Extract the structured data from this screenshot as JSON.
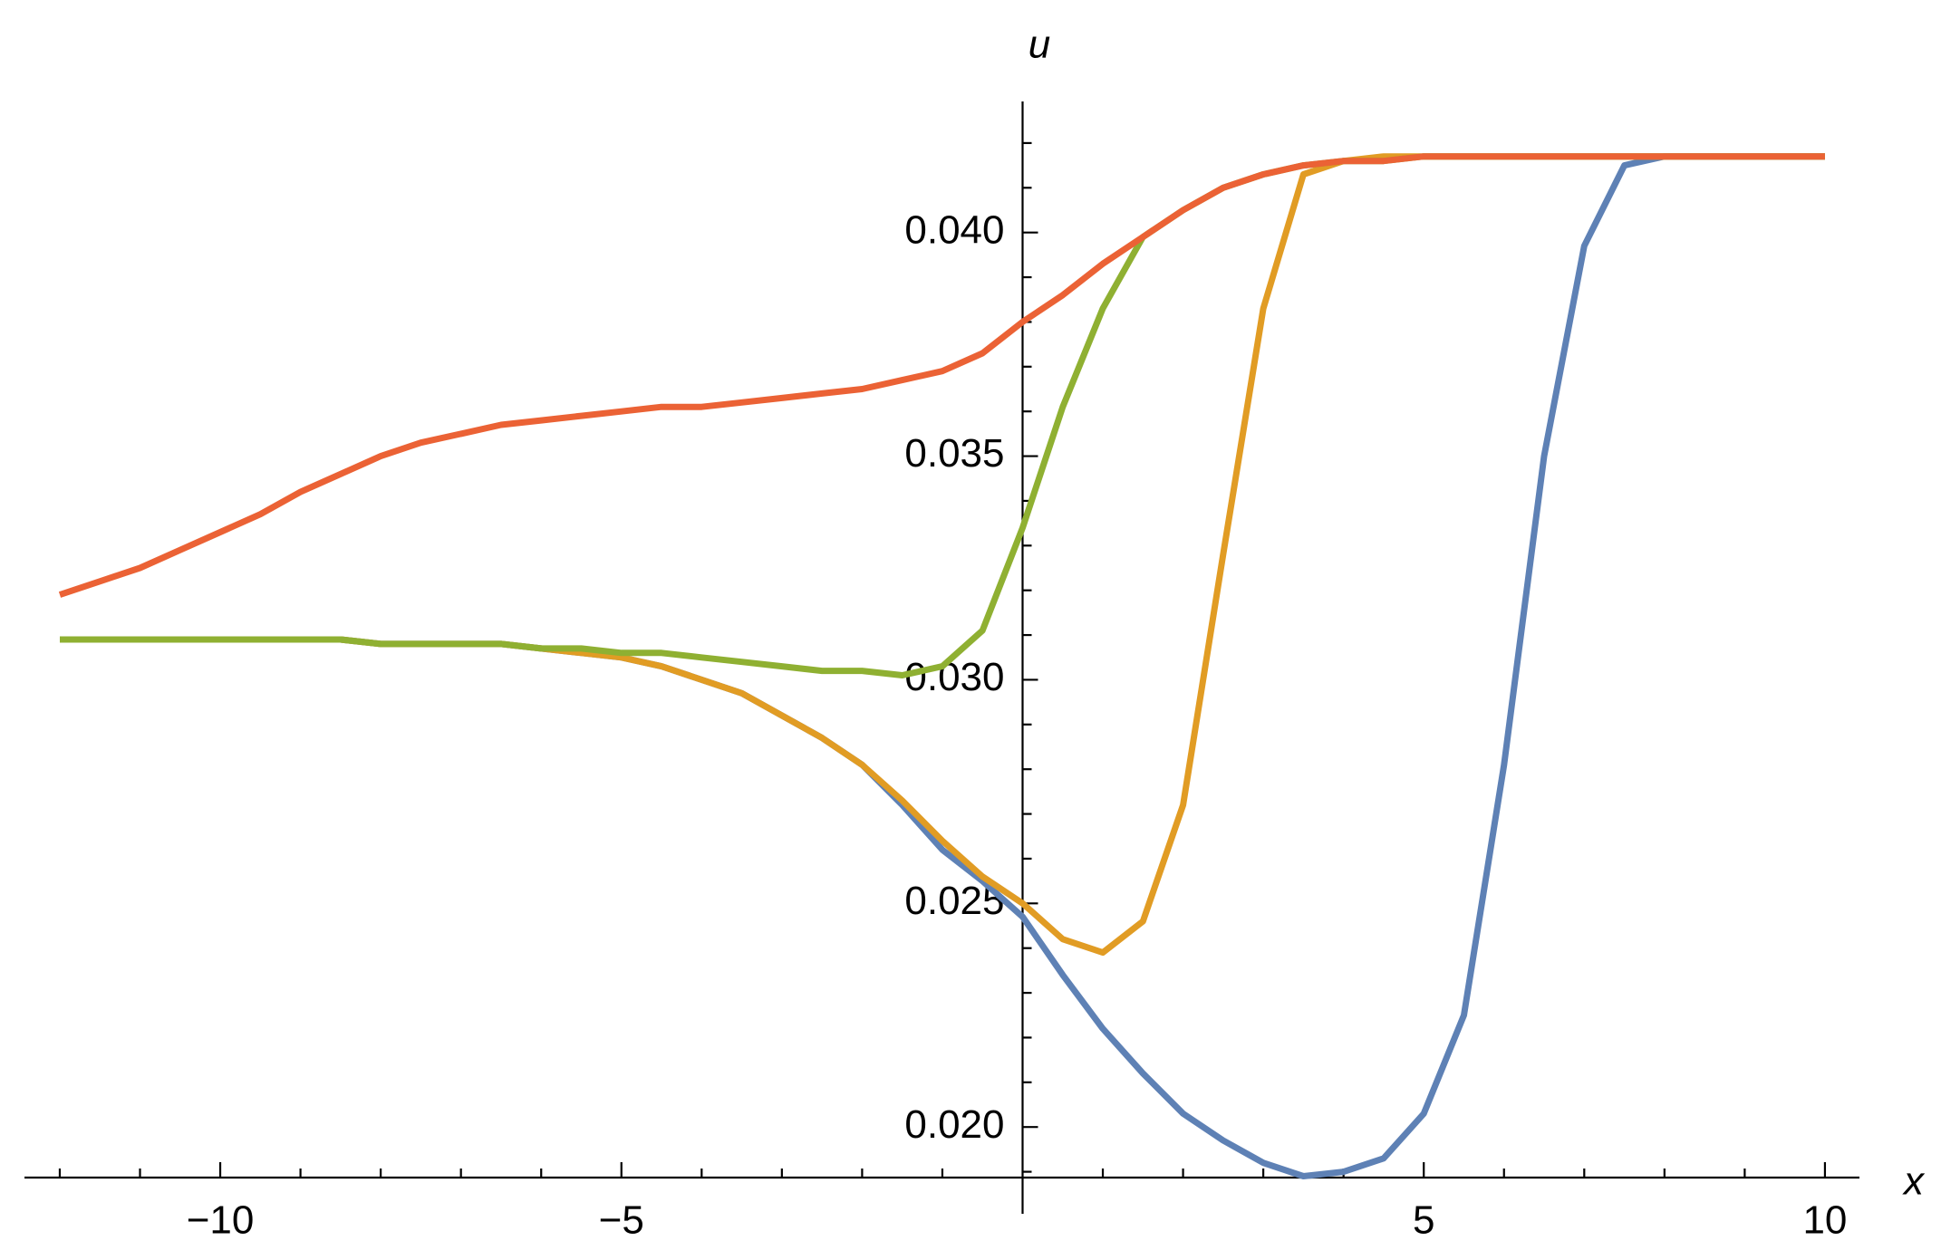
{
  "chart_data": {
    "type": "line",
    "xlabel": "x",
    "ylabel": "u",
    "x": [
      -12,
      -11.5,
      -11,
      -10.5,
      -10,
      -9.5,
      -9,
      -8.5,
      -8,
      -7.5,
      -7,
      -6.5,
      -6,
      -5.5,
      -5,
      -4.5,
      -4,
      -3.5,
      -3,
      -2.5,
      -2,
      -1.5,
      -1,
      -0.5,
      0,
      0.5,
      1,
      1.5,
      2,
      2.5,
      3,
      3.5,
      4,
      4.5,
      5,
      5.5,
      6,
      6.5,
      7,
      7.5,
      8,
      8.5,
      9,
      9.5,
      10
    ],
    "series": [
      {
        "color": "#5e81b5",
        "values": [
          0.0309,
          0.0309,
          0.0309,
          0.0309,
          0.0309,
          0.0309,
          0.0309,
          0.0309,
          0.0308,
          0.0308,
          0.0308,
          0.0308,
          0.0307,
          0.0306,
          0.0305,
          0.0303,
          0.03,
          0.0297,
          0.0292,
          0.0287,
          0.0281,
          0.0272,
          0.0262,
          0.0255,
          0.0247,
          0.0234,
          0.0222,
          0.0212,
          0.0203,
          0.0197,
          0.0192,
          0.0189,
          0.019,
          0.0193,
          0.0203,
          0.0225,
          0.0281,
          0.035,
          0.0397,
          0.0415,
          0.0417,
          0.0417,
          0.0417,
          0.0417,
          0.0417
        ]
      },
      {
        "color": "#e19c24",
        "values": [
          0.0309,
          0.0309,
          0.0309,
          0.0309,
          0.0309,
          0.0309,
          0.0309,
          0.0309,
          0.0308,
          0.0308,
          0.0308,
          0.0308,
          0.0307,
          0.0306,
          0.0305,
          0.0303,
          0.03,
          0.0297,
          0.0292,
          0.0287,
          0.0281,
          0.0273,
          0.0264,
          0.0256,
          0.025,
          0.0242,
          0.0239,
          0.0246,
          0.0272,
          0.0328,
          0.0383,
          0.0413,
          0.0416,
          0.0417,
          0.0417,
          0.0417,
          0.0417,
          0.0417,
          0.0417,
          0.0417,
          0.0417,
          0.0417,
          0.0417,
          0.0417,
          0.0417
        ]
      },
      {
        "color": "#8fb032",
        "values": [
          0.0309,
          0.0309,
          0.0309,
          0.0309,
          0.0309,
          0.0309,
          0.0309,
          0.0309,
          0.0308,
          0.0308,
          0.0308,
          0.0308,
          0.0307,
          0.0307,
          0.0306,
          0.0306,
          0.0305,
          0.0304,
          0.0303,
          0.0302,
          0.0302,
          0.0301,
          0.0303,
          0.0311,
          0.0334,
          0.0361,
          0.0383,
          0.0399,
          0.0405,
          0.041,
          0.0413,
          0.0415,
          0.0416,
          0.0416,
          0.0417,
          0.0417,
          0.0417,
          0.0417,
          0.0417,
          0.0417,
          0.0417,
          0.0417,
          0.0417,
          0.0417,
          0.0417
        ]
      },
      {
        "color": "#eb6235",
        "values": [
          0.0319,
          0.0322,
          0.0325,
          0.0329,
          0.0333,
          0.0337,
          0.0342,
          0.0346,
          0.035,
          0.0353,
          0.0355,
          0.0357,
          0.0358,
          0.0359,
          0.036,
          0.0361,
          0.0361,
          0.0362,
          0.0363,
          0.0364,
          0.0365,
          0.0367,
          0.0369,
          0.0373,
          0.038,
          0.0386,
          0.0393,
          0.0399,
          0.0405,
          0.041,
          0.0413,
          0.0415,
          0.0416,
          0.0416,
          0.0417,
          0.0417,
          0.0417,
          0.0417,
          0.0417,
          0.0417,
          0.0417,
          0.0417,
          0.0417,
          0.0417,
          0.0417
        ]
      }
    ],
    "xlim": [
      -12.44,
      10.43
    ],
    "ylim": [
      0.01887,
      0.04293
    ],
    "xticks": [
      {
        "value": -10,
        "label": "−10"
      },
      {
        "value": -5,
        "label": "−5"
      },
      5,
      10
    ],
    "yticks": [
      {
        "value": 0.02,
        "label": "0.020"
      },
      {
        "value": 0.025,
        "label": "0.025"
      },
      {
        "value": 0.03,
        "label": "0.030"
      },
      {
        "value": 0.035,
        "label": "0.035"
      },
      {
        "value": 0.04,
        "label": "0.040"
      }
    ]
  }
}
